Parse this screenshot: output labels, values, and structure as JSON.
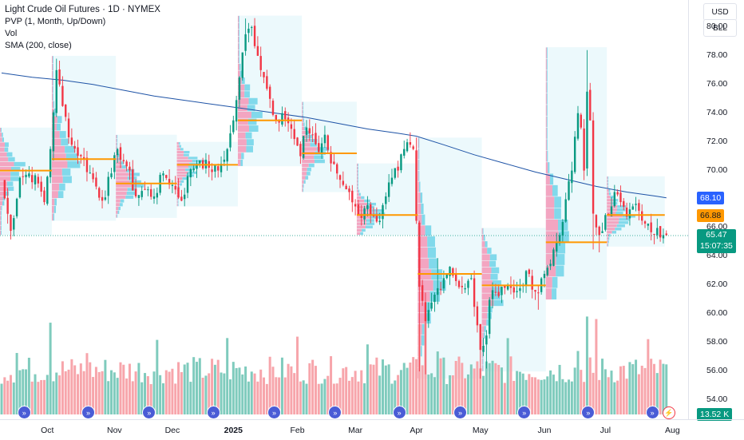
{
  "legend": {
    "title": "Light Crude Oil Futures · 1D · NYMEX",
    "indicators": [
      "PVP (1, Month, Up/Down)",
      "Vol",
      "SMA (200, close)"
    ]
  },
  "axis_controls": {
    "currency": "USD",
    "unit": "BLL"
  },
  "price_labels": {
    "sma": {
      "text": "68.10",
      "value": 68.1,
      "color": "#2962ff"
    },
    "poc": {
      "text": "66.88",
      "value": 66.88,
      "color": "#ff9800"
    },
    "last": {
      "text": "65.47",
      "value": 65.47,
      "color": "#089981"
    },
    "countdown": "15:07:35",
    "volume": "13.52 K"
  },
  "colors": {
    "up": "#089981",
    "down": "#f23645",
    "sma": "#1e53a6",
    "poc": "#ff9800",
    "vol_up": "#7fcbbd",
    "vol_down": "#f7a5ab",
    "zone": "#e6f7fb"
  },
  "chart_data": {
    "type": "candlestick",
    "symbol": "Light Crude Oil Futures",
    "interval": "1D",
    "exchange": "NYMEX",
    "ylim": [
      53,
      81.5
    ],
    "y_ticks": [
      54,
      56,
      58,
      60,
      62,
      64,
      66,
      70,
      72,
      74,
      76,
      78,
      80
    ],
    "y_tick_labels": [
      "54.00",
      "56.00",
      "58.00",
      "60.00",
      "62.00",
      "64.00",
      "66.00",
      "70.00",
      "72.00",
      "74.00",
      "76.00",
      "78.00",
      "80.00"
    ],
    "x_ticks": [
      {
        "label": "Oct",
        "i": 15,
        "bold": false
      },
      {
        "label": "Nov",
        "i": 37,
        "bold": false
      },
      {
        "label": "Dec",
        "i": 56,
        "bold": false
      },
      {
        "label": "2025",
        "i": 76,
        "bold": true
      },
      {
        "label": "Feb",
        "i": 97,
        "bold": false
      },
      {
        "label": "Mar",
        "i": 116,
        "bold": false
      },
      {
        "label": "Apr",
        "i": 136,
        "bold": false
      },
      {
        "label": "May",
        "i": 157,
        "bold": false
      },
      {
        "label": "Jun",
        "i": 178,
        "bold": false
      },
      {
        "label": "Jul",
        "i": 198,
        "bold": false
      },
      {
        "label": "Aug",
        "i": 220,
        "bold": false
      }
    ],
    "anchors": [
      [
        0,
        69.2
      ],
      [
        3,
        65.8
      ],
      [
        6,
        69.5
      ],
      [
        9,
        69.8
      ],
      [
        12,
        69.1
      ],
      [
        14,
        67.8
      ],
      [
        16,
        71.5
      ],
      [
        18,
        77.0
      ],
      [
        20,
        74.5
      ],
      [
        23,
        71.8
      ],
      [
        26,
        71.0
      ],
      [
        30,
        69.4
      ],
      [
        33,
        67.9
      ],
      [
        36,
        69.8
      ],
      [
        38,
        71.5
      ],
      [
        41,
        70.3
      ],
      [
        44,
        68.2
      ],
      [
        47,
        68.7
      ],
      [
        50,
        68.2
      ],
      [
        53,
        69.8
      ],
      [
        56,
        69.0
      ],
      [
        59,
        67.9
      ],
      [
        62,
        70.1
      ],
      [
        65,
        70.7
      ],
      [
        68,
        70.2
      ],
      [
        71,
        70.0
      ],
      [
        74,
        71.5
      ],
      [
        76,
        73.5
      ],
      [
        78,
        76.5
      ],
      [
        80,
        79.5
      ],
      [
        82,
        80.0
      ],
      [
        84,
        78.0
      ],
      [
        86,
        76.5
      ],
      [
        88,
        75.0
      ],
      [
        90,
        73.5
      ],
      [
        92,
        74.0
      ],
      [
        94,
        73.3
      ],
      [
        96,
        72.2
      ],
      [
        98,
        71.0
      ],
      [
        100,
        73.0
      ],
      [
        102,
        72.5
      ],
      [
        104,
        71.3
      ],
      [
        106,
        72.5
      ],
      [
        108,
        70.5
      ],
      [
        110,
        69.8
      ],
      [
        112,
        69.0
      ],
      [
        114,
        68.5
      ],
      [
        116,
        67.5
      ],
      [
        118,
        66.7
      ],
      [
        120,
        67.6
      ],
      [
        122,
        66.8
      ],
      [
        124,
        66.5
      ],
      [
        126,
        68.2
      ],
      [
        128,
        69.5
      ],
      [
        130,
        70.0
      ],
      [
        132,
        71.5
      ],
      [
        134,
        71.8
      ],
      [
        135,
        71.5
      ],
      [
        136,
        66.5
      ],
      [
        137,
        61.9
      ],
      [
        139,
        59.5
      ],
      [
        141,
        60.8
      ],
      [
        143,
        61.8
      ],
      [
        145,
        62.5
      ],
      [
        147,
        63.3
      ],
      [
        149,
        62.3
      ],
      [
        152,
        61.8
      ],
      [
        154,
        62.5
      ],
      [
        155,
        60.5
      ],
      [
        157,
        57.5
      ],
      [
        159,
        58.5
      ],
      [
        160,
        61.0
      ],
      [
        162,
        61.5
      ],
      [
        164,
        61.9
      ],
      [
        166,
        62.0
      ],
      [
        168,
        61.5
      ],
      [
        170,
        61.8
      ],
      [
        172,
        63.0
      ],
      [
        174,
        61.7
      ],
      [
        176,
        61.5
      ],
      [
        178,
        62.8
      ],
      [
        180,
        63.5
      ],
      [
        181,
        64.5
      ],
      [
        183,
        65.5
      ],
      [
        185,
        68.0
      ],
      [
        187,
        70.0
      ],
      [
        189,
        74.0
      ],
      [
        190,
        73.0
      ],
      [
        191,
        70.0
      ],
      [
        192,
        75.5
      ],
      [
        193,
        73.5
      ],
      [
        194,
        67.0
      ],
      [
        196,
        65.5
      ],
      [
        198,
        66.9
      ],
      [
        200,
        67.5
      ],
      [
        201,
        68.5
      ],
      [
        203,
        67.8
      ],
      [
        205,
        66.8
      ],
      [
        207,
        67.5
      ],
      [
        209,
        67.2
      ],
      [
        211,
        66.3
      ],
      [
        213,
        65.7
      ],
      [
        215,
        66.0
      ],
      [
        217,
        65.5
      ],
      [
        218,
        65.5
      ]
    ],
    "wick_highs": [
      [
        18,
        77.8
      ],
      [
        80,
        80.6
      ],
      [
        82,
        80.1
      ],
      [
        136,
        72.3
      ],
      [
        143,
        63.9
      ],
      [
        157,
        59.0
      ],
      [
        189,
        74.5
      ],
      [
        192,
        78.4
      ],
      [
        201,
        69.0
      ]
    ],
    "wick_lows": [
      [
        3,
        65.2
      ],
      [
        137,
        56.0
      ],
      [
        139,
        55.8
      ],
      [
        157,
        55.5
      ],
      [
        159,
        56.2
      ],
      [
        176,
        60.3
      ],
      [
        194,
        64.5
      ],
      [
        196,
        64.3
      ]
    ],
    "sma_200": [
      [
        0,
        76.8
      ],
      [
        10,
        76.5
      ],
      [
        20,
        76.3
      ],
      [
        30,
        76.0
      ],
      [
        40,
        75.6
      ],
      [
        50,
        75.2
      ],
      [
        60,
        74.9
      ],
      [
        70,
        74.6
      ],
      [
        80,
        74.3
      ],
      [
        90,
        74.0
      ],
      [
        100,
        73.7
      ],
      [
        110,
        73.3
      ],
      [
        120,
        72.9
      ],
      [
        130,
        72.6
      ],
      [
        136,
        72.4
      ],
      [
        145,
        71.8
      ],
      [
        155,
        71.1
      ],
      [
        165,
        70.5
      ],
      [
        175,
        69.9
      ],
      [
        185,
        69.4
      ],
      [
        195,
        68.9
      ],
      [
        205,
        68.5
      ],
      [
        215,
        68.2
      ],
      [
        218,
        68.1
      ]
    ],
    "volume_profile_months": [
      {
        "start": 0,
        "end": 17,
        "poc": 70.0,
        "high": 73.0,
        "low": 65.5
      },
      {
        "start": 17,
        "end": 38,
        "poc": 70.8,
        "high": 78.0,
        "low": 66.5
      },
      {
        "start": 38,
        "end": 58,
        "poc": 69.1,
        "high": 72.5,
        "low": 66.7
      },
      {
        "start": 58,
        "end": 78,
        "poc": 70.4,
        "high": 72.0,
        "low": 67.5
      },
      {
        "start": 78,
        "end": 99,
        "poc": 73.5,
        "high": 80.8,
        "low": 70.3
      },
      {
        "start": 99,
        "end": 117,
        "poc": 71.2,
        "high": 74.8,
        "low": 68.5
      },
      {
        "start": 117,
        "end": 137,
        "poc": 66.9,
        "high": 70.5,
        "low": 65.5
      },
      {
        "start": 137,
        "end": 158,
        "poc": 62.8,
        "high": 72.3,
        "low": 55.5
      },
      {
        "start": 158,
        "end": 179,
        "poc": 62.0,
        "high": 66.0,
        "low": 56.0
      },
      {
        "start": 179,
        "end": 199,
        "poc": 65.0,
        "high": 78.6,
        "low": 61.0
      },
      {
        "start": 199,
        "end": 218,
        "poc": 66.9,
        "high": 69.6,
        "low": 64.7
      }
    ],
    "volume": {
      "label": "Vol",
      "last": "13.52 K"
    }
  }
}
